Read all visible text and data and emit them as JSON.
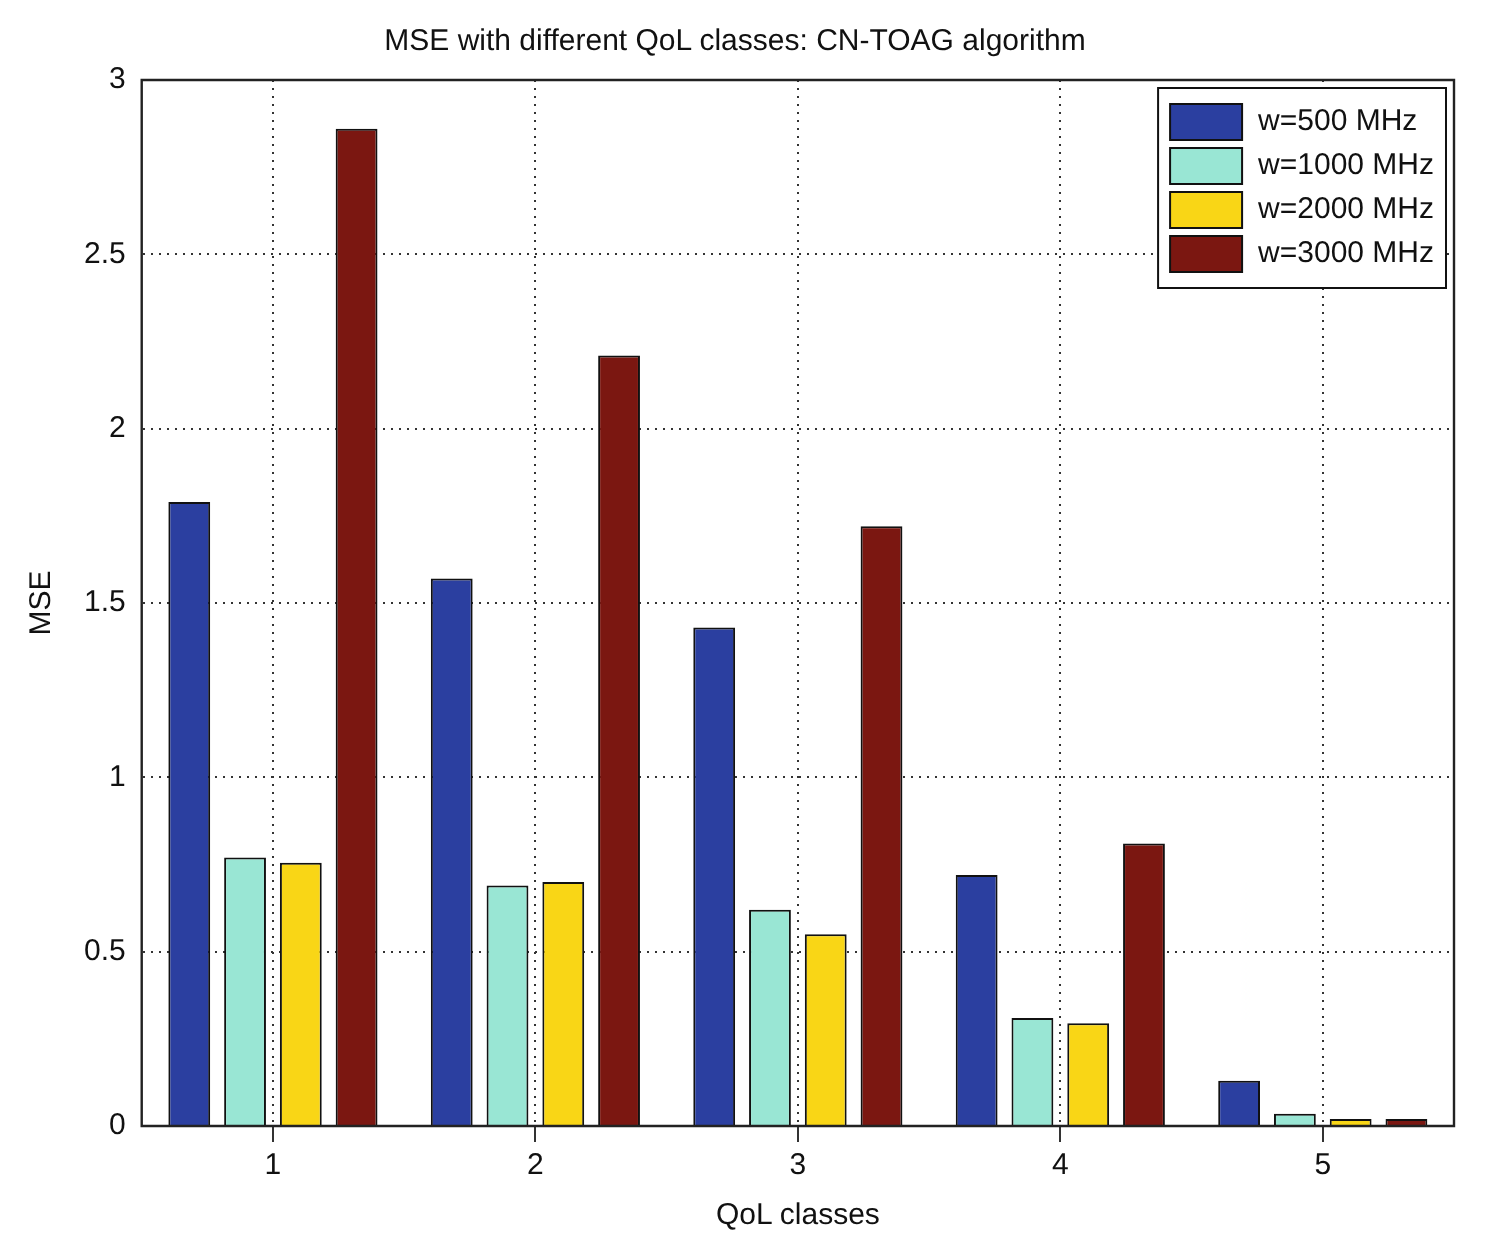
{
  "chart_data": {
    "type": "bar",
    "title": "MSE with different QoL classes: CN-TOAG algorithm",
    "xlabel": "QoL classes",
    "ylabel": "MSE",
    "categories": [
      "1",
      "2",
      "3",
      "4",
      "5"
    ],
    "series": [
      {
        "name": "w=500 MHz",
        "color": "#2b3fa0",
        "values": [
          1.79,
          1.57,
          1.43,
          0.72,
          0.13
        ]
      },
      {
        "name": "w=1000 MHz",
        "color": "#99e6d4",
        "values": [
          0.77,
          0.69,
          0.62,
          0.31,
          0.035
        ]
      },
      {
        "name": "w=2000 MHz",
        "color": "#f9d616",
        "values": [
          0.755,
          0.7,
          0.55,
          0.295,
          0.02
        ]
      },
      {
        "name": "w=3000 MHz",
        "color": "#7b1711",
        "values": [
          2.86,
          2.21,
          1.72,
          0.81,
          0.02
        ]
      }
    ],
    "ylim": [
      0,
      3
    ],
    "yticks": [
      0,
      0.5,
      1,
      1.5,
      2,
      2.5,
      3
    ],
    "grid": true,
    "legend": "top right"
  }
}
